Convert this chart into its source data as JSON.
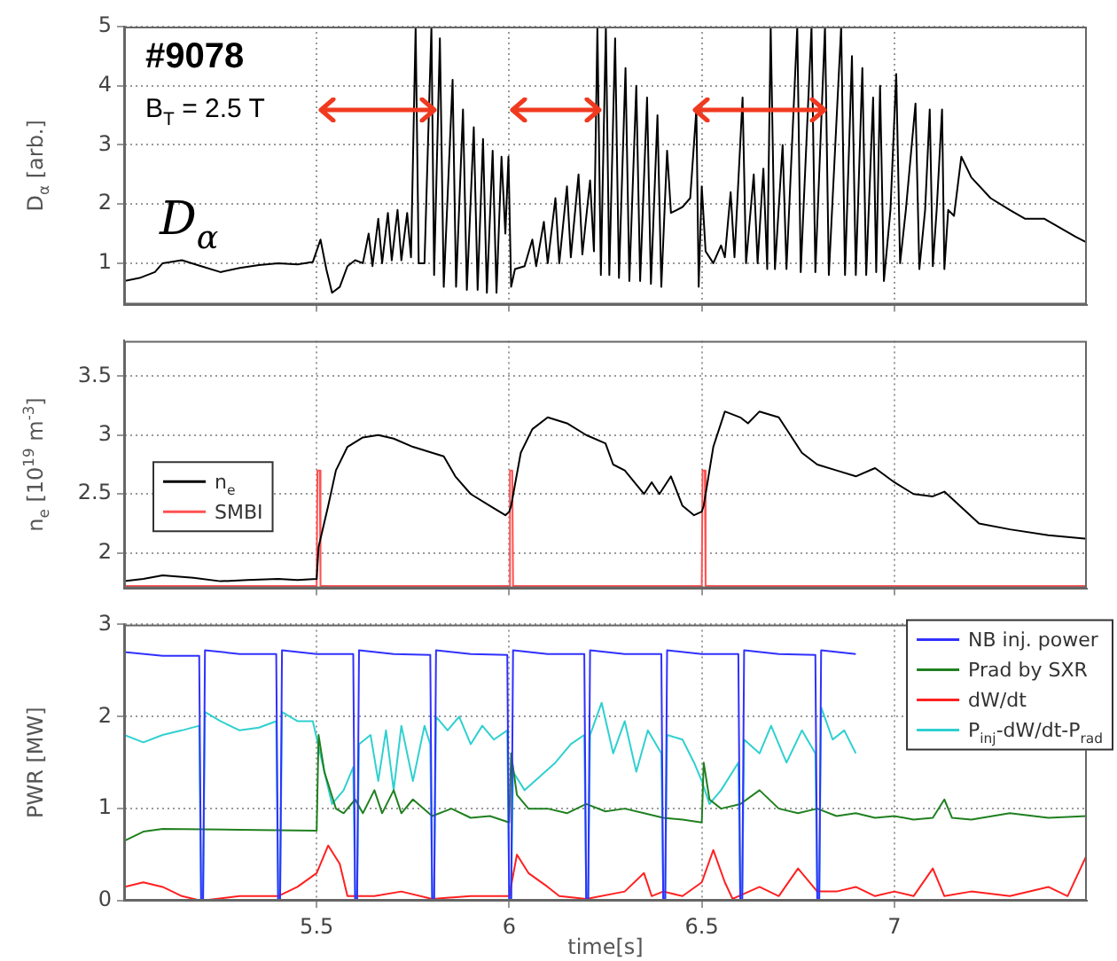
{
  "chart_data": [
    {
      "type": "line",
      "ylabel": "D$_{α}$ [arb.]",
      "xlim": [
        5,
        7.5
      ],
      "xticks": [
        5.5,
        6,
        6.5,
        7
      ],
      "ylim": [
        0.3,
        5
      ],
      "yticks": [
        1,
        2,
        3,
        4,
        5
      ],
      "grid": true,
      "tick_labels": "y",
      "annotations": [
        "#9078",
        "B$_{T}$ = 2.5 T"
      ],
      "series": [
        {
          "name": "D$_{α}$",
          "color": "#000000",
          "x": [
            5.0,
            5.04,
            5.08,
            5.1,
            5.15,
            5.2,
            5.25,
            5.3,
            5.35,
            5.4,
            5.45,
            5.49,
            5.51,
            5.525,
            5.54,
            5.56,
            5.58,
            5.6,
            5.62,
            5.635,
            5.645,
            5.66,
            5.67,
            5.685,
            5.695,
            5.71,
            5.72,
            5.735,
            5.745,
            5.757,
            5.765,
            5.78,
            5.798,
            5.805,
            5.82,
            5.83,
            5.853,
            5.862,
            5.88,
            5.89,
            5.908,
            5.918,
            5.932,
            5.942,
            5.957,
            5.967,
            5.98,
            5.99,
            5.998,
            6.005,
            6.015,
            6.04,
            6.06,
            6.07,
            6.09,
            6.1,
            6.12,
            6.13,
            6.15,
            6.16,
            6.18,
            6.19,
            6.21,
            6.22,
            6.229,
            6.238,
            6.251,
            6.26,
            6.275,
            6.285,
            6.302,
            6.312,
            6.33,
            6.34,
            6.358,
            6.368,
            6.385,
            6.395,
            6.41,
            6.42,
            6.45,
            6.47,
            6.486,
            6.492,
            6.5,
            6.51,
            6.53,
            6.55,
            6.56,
            6.575,
            6.585,
            6.606,
            6.615,
            6.635,
            6.645,
            6.66,
            6.67,
            6.679,
            6.69,
            6.71,
            6.72,
            6.748,
            6.757,
            6.785,
            6.795,
            6.82,
            6.83,
            6.862,
            6.872,
            6.89,
            6.9,
            6.917,
            6.927,
            6.945,
            6.953,
            6.963,
            6.973,
            6.99,
            7.005,
            7.015,
            7.03,
            7.055,
            7.065,
            7.08,
            7.092,
            7.1,
            7.11,
            7.124,
            7.13,
            7.14,
            7.155,
            7.174,
            7.2,
            7.25,
            7.3,
            7.34,
            7.39,
            7.43,
            7.47,
            7.5
          ],
          "values": [
            0.7,
            0.75,
            0.85,
            1.0,
            1.05,
            0.95,
            0.85,
            0.92,
            0.97,
            1.0,
            0.98,
            1.02,
            1.4,
            0.9,
            0.5,
            0.6,
            0.95,
            1.05,
            1.0,
            1.5,
            0.95,
            1.75,
            1.0,
            1.85,
            1.05,
            1.9,
            1.05,
            1.85,
            1.1,
            5.0,
            1.0,
            1.0,
            5.0,
            0.8,
            4.8,
            0.6,
            4.1,
            0.6,
            3.6,
            0.55,
            3.3,
            0.55,
            3.1,
            0.5,
            2.9,
            0.5,
            2.8,
            1.5,
            2.8,
            0.6,
            0.9,
            0.95,
            1.4,
            0.95,
            1.7,
            1.0,
            2.1,
            1.0,
            2.3,
            1.1,
            2.5,
            1.15,
            2.4,
            1.2,
            5.0,
            0.8,
            5.0,
            0.8,
            4.8,
            0.75,
            4.3,
            0.7,
            4.0,
            0.7,
            3.8,
            0.65,
            3.5,
            0.6,
            2.9,
            1.85,
            1.95,
            2.1,
            3.6,
            0.6,
            2.3,
            1.2,
            1.0,
            1.3,
            1.1,
            2.2,
            1.1,
            3.8,
            1.0,
            2.5,
            1.0,
            2.6,
            0.9,
            5.0,
            0.9,
            3.0,
            0.9,
            5.0,
            0.85,
            5.0,
            0.85,
            5.0,
            0.8,
            5.0,
            0.8,
            4.5,
            0.8,
            4.3,
            0.8,
            3.8,
            0.85,
            4.0,
            0.7,
            1.9,
            4.2,
            1.0,
            1.9,
            3.7,
            0.9,
            1.9,
            3.6,
            0.95,
            1.9,
            3.6,
            0.9,
            1.9,
            1.8,
            2.8,
            2.45,
            2.1,
            1.9,
            1.75,
            1.75,
            1.6,
            1.45,
            1.35
          ]
        }
      ]
    },
    {
      "type": "line",
      "ylabel": "n$_{e}$ [10$^{19}$ m$^{-3}$]",
      "xlim": [
        5,
        7.5
      ],
      "xticks": [
        5.5,
        6,
        6.5,
        7
      ],
      "ylim": [
        1.7,
        3.8
      ],
      "yticks": [
        2,
        2.5,
        3,
        3.5
      ],
      "grid": true,
      "tick_labels": "y",
      "legend": "left",
      "series": [
        {
          "name": "n$_{e}$",
          "color": "#000000",
          "x": [
            5.0,
            5.05,
            5.1,
            5.18,
            5.25,
            5.32,
            5.4,
            5.45,
            5.5,
            5.505,
            5.53,
            5.55,
            5.58,
            5.62,
            5.66,
            5.7,
            5.75,
            5.8,
            5.83,
            5.86,
            5.9,
            5.95,
            5.99,
            6.0,
            6.005,
            6.03,
            6.06,
            6.1,
            6.15,
            6.2,
            6.25,
            6.27,
            6.3,
            6.35,
            6.37,
            6.39,
            6.42,
            6.45,
            6.48,
            6.5,
            6.505,
            6.53,
            6.56,
            6.6,
            6.62,
            6.65,
            6.7,
            6.73,
            6.76,
            6.8,
            6.85,
            6.9,
            6.95,
            7.0,
            7.05,
            7.1,
            7.13,
            7.17,
            7.22,
            7.3,
            7.4,
            7.5
          ],
          "values": [
            1.76,
            1.78,
            1.81,
            1.79,
            1.76,
            1.77,
            1.78,
            1.77,
            1.78,
            2.05,
            2.4,
            2.7,
            2.9,
            2.98,
            3.0,
            2.97,
            2.9,
            2.85,
            2.82,
            2.65,
            2.5,
            2.4,
            2.32,
            2.35,
            2.4,
            2.85,
            3.05,
            3.15,
            3.1,
            3.0,
            2.93,
            2.75,
            2.7,
            2.5,
            2.6,
            2.5,
            2.65,
            2.4,
            2.32,
            2.35,
            2.4,
            2.9,
            3.2,
            3.15,
            3.1,
            3.2,
            3.15,
            3.0,
            2.85,
            2.75,
            2.7,
            2.65,
            2.72,
            2.6,
            2.5,
            2.48,
            2.52,
            2.4,
            2.25,
            2.2,
            2.15,
            2.12
          ]
        },
        {
          "name": "SMBI",
          "color": "#ff5050",
          "x": [
            5.0,
            5.5,
            5.502,
            5.508,
            5.51,
            6.0,
            6.002,
            6.008,
            6.01,
            6.5,
            6.502,
            6.508,
            6.51,
            7.5
          ],
          "values": [
            1.72,
            1.72,
            2.7,
            2.7,
            1.72,
            1.72,
            2.7,
            2.7,
            1.72,
            1.72,
            2.7,
            2.7,
            1.72,
            1.72
          ]
        }
      ]
    },
    {
      "type": "line",
      "xlabel": "time[s]",
      "ylabel": "PWR [MW]",
      "xlim": [
        5,
        7.5
      ],
      "xticks": [
        5.5,
        6,
        6.5,
        7
      ],
      "ylim": [
        0,
        3
      ],
      "yticks": [
        0,
        1,
        2,
        3
      ],
      "grid": true,
      "legend": "top right",
      "series": [
        {
          "name": "NB inj. power",
          "color": "#3030ff",
          "x": [
            5.0,
            5.1,
            5.195,
            5.2,
            5.205,
            5.21,
            5.3,
            5.395,
            5.4,
            5.405,
            5.41,
            5.5,
            5.595,
            5.6,
            5.605,
            5.61,
            5.7,
            5.795,
            5.8,
            5.805,
            5.81,
            5.9,
            5.995,
            6.0,
            6.005,
            6.01,
            6.1,
            6.195,
            6.2,
            6.205,
            6.21,
            6.3,
            6.395,
            6.4,
            6.405,
            6.41,
            6.5,
            6.595,
            6.6,
            6.605,
            6.61,
            6.7,
            6.795,
            6.8,
            6.805,
            6.81,
            6.9
          ],
          "values": [
            2.7,
            2.66,
            2.66,
            0,
            0,
            2.72,
            2.68,
            2.68,
            0,
            0,
            2.72,
            2.68,
            2.68,
            0,
            0,
            2.72,
            2.68,
            2.67,
            0,
            0,
            2.72,
            2.68,
            2.67,
            0,
            0,
            2.72,
            2.68,
            2.68,
            0,
            0,
            2.72,
            2.68,
            2.68,
            0,
            0,
            2.72,
            2.68,
            2.68,
            0,
            0,
            2.72,
            2.68,
            2.67,
            0,
            0,
            2.72,
            2.68
          ]
        },
        {
          "name": "Prad by SXR",
          "color": "#208020",
          "x": [
            5.0,
            5.05,
            5.1,
            5.3,
            5.5,
            5.505,
            5.52,
            5.55,
            5.57,
            5.6,
            5.62,
            5.65,
            5.67,
            5.7,
            5.72,
            5.75,
            5.8,
            5.85,
            5.9,
            5.95,
            6.0,
            6.005,
            6.02,
            6.05,
            6.1,
            6.15,
            6.2,
            6.25,
            6.3,
            6.35,
            6.4,
            6.45,
            6.5,
            6.505,
            6.52,
            6.55,
            6.6,
            6.65,
            6.7,
            6.75,
            6.8,
            6.85,
            6.9,
            6.95,
            7.0,
            7.05,
            7.1,
            7.13,
            7.15,
            7.2,
            7.3,
            7.4,
            7.5
          ],
          "values": [
            0.65,
            0.75,
            0.78,
            0.77,
            0.76,
            1.8,
            1.4,
            1.0,
            0.95,
            1.1,
            0.95,
            1.2,
            0.95,
            1.2,
            0.95,
            1.1,
            0.92,
            1.0,
            0.9,
            0.92,
            0.85,
            1.6,
            1.15,
            1.0,
            1.0,
            0.95,
            1.05,
            0.97,
            1.0,
            0.95,
            0.9,
            0.88,
            0.85,
            1.5,
            1.1,
            1.0,
            1.05,
            1.2,
            1.0,
            0.95,
            1.0,
            0.92,
            0.95,
            0.9,
            0.92,
            0.88,
            0.9,
            1.1,
            0.9,
            0.88,
            0.95,
            0.9,
            0.92
          ]
        },
        {
          "name": "dW/dt",
          "color": "#ff2020",
          "x": [
            5.0,
            5.05,
            5.1,
            5.15,
            5.2,
            5.3,
            5.4,
            5.45,
            5.5,
            5.53,
            5.56,
            5.58,
            5.65,
            5.72,
            5.8,
            5.9,
            6.0,
            6.02,
            6.05,
            6.1,
            6.13,
            6.2,
            6.3,
            6.35,
            6.37,
            6.4,
            6.45,
            6.5,
            6.53,
            6.56,
            6.58,
            6.65,
            6.7,
            6.75,
            6.8,
            6.85,
            6.9,
            6.95,
            7.0,
            7.05,
            7.1,
            7.13,
            7.2,
            7.3,
            7.4,
            7.45,
            7.5
          ],
          "values": [
            0.15,
            0.2,
            0.15,
            0.05,
            0,
            0.05,
            0.05,
            0.15,
            0.3,
            0.6,
            0.4,
            0.05,
            0.05,
            0.1,
            0.02,
            0.05,
            0.05,
            0.5,
            0.3,
            0.15,
            0.05,
            0.02,
            0.1,
            0.3,
            0.05,
            0.1,
            0.05,
            0.2,
            0.55,
            0.2,
            0.02,
            0.15,
            0.05,
            0.35,
            0.1,
            0.1,
            0.15,
            0.05,
            0.1,
            0.05,
            0.35,
            0.05,
            0.1,
            0.05,
            0.15,
            0.05,
            0.5
          ]
        },
        {
          "name": "P$_{inj}$-dW/dt-P$_{rad}$",
          "color": "#30d0d0",
          "x": [
            5.0,
            5.05,
            5.1,
            5.15,
            5.195,
            5.2,
            5.205,
            5.21,
            5.25,
            5.3,
            5.35,
            5.395,
            5.4,
            5.405,
            5.41,
            5.45,
            5.49,
            5.52,
            5.54,
            5.57,
            5.595,
            5.6,
            5.605,
            5.61,
            5.64,
            5.66,
            5.68,
            5.7,
            5.72,
            5.75,
            5.78,
            5.795,
            5.8,
            5.805,
            5.81,
            5.84,
            5.87,
            5.9,
            5.93,
            5.96,
            5.995,
            6.0,
            6.005,
            6.01,
            6.04,
            6.08,
            6.12,
            6.16,
            6.195,
            6.2,
            6.205,
            6.21,
            6.24,
            6.27,
            6.3,
            6.33,
            6.36,
            6.395,
            6.4,
            6.405,
            6.41,
            6.45,
            6.48,
            6.5,
            6.52,
            6.55,
            6.595,
            6.6,
            6.605,
            6.61,
            6.65,
            6.68,
            6.72,
            6.76,
            6.795,
            6.8,
            6.805,
            6.81,
            6.84,
            6.87,
            6.9
          ],
          "values": [
            1.8,
            1.72,
            1.8,
            1.85,
            1.9,
            0,
            0,
            2.05,
            1.95,
            1.85,
            1.88,
            1.95,
            0,
            0,
            2.05,
            1.95,
            1.95,
            1.4,
            1.05,
            1.2,
            1.45,
            0,
            0,
            1.7,
            1.8,
            1.3,
            1.85,
            1.2,
            1.9,
            1.3,
            1.9,
            1.7,
            0,
            0,
            2.0,
            1.85,
            2.0,
            1.7,
            1.9,
            1.75,
            1.85,
            0,
            0,
            1.4,
            1.2,
            1.35,
            1.5,
            1.7,
            1.8,
            0,
            0,
            1.8,
            2.15,
            1.6,
            1.95,
            1.4,
            1.85,
            1.6,
            0,
            0,
            1.8,
            1.75,
            1.5,
            1.3,
            1.05,
            1.2,
            1.5,
            0,
            0,
            1.75,
            1.6,
            1.9,
            1.5,
            1.85,
            1.6,
            0,
            0,
            2.1,
            1.75,
            1.85,
            1.6
          ]
        }
      ]
    }
  ]
}
